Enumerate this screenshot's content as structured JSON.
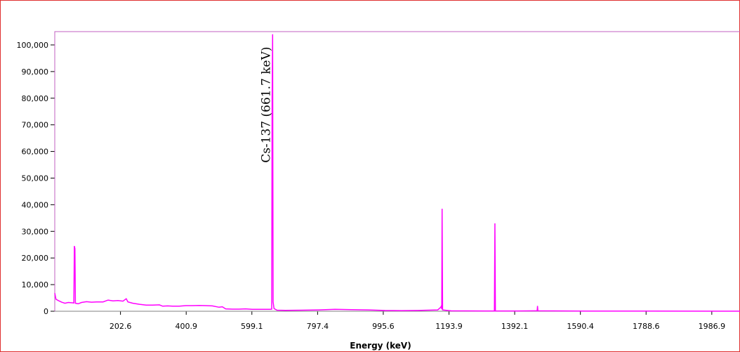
{
  "chart_data": {
    "type": "line",
    "xlabel": "Energy (keV)",
    "ylabel": "",
    "xlim": [
      4.3,
      2072
    ],
    "ylim": [
      0,
      105000
    ],
    "x_ticks": [
      {
        "value": 202.6,
        "label": "202.6"
      },
      {
        "value": 400.9,
        "label": "400.9"
      },
      {
        "value": 599.1,
        "label": "599.1"
      },
      {
        "value": 797.4,
        "label": "797.4"
      },
      {
        "value": 995.6,
        "label": "995.6"
      },
      {
        "value": 1193.9,
        "label": "1193.9"
      },
      {
        "value": 1392.1,
        "label": "1392.1"
      },
      {
        "value": 1590.4,
        "label": "1590.4"
      },
      {
        "value": 1788.6,
        "label": "1788.6"
      },
      {
        "value": 1986.9,
        "label": "1986.9"
      }
    ],
    "y_ticks": [
      {
        "value": 0,
        "label": "0"
      },
      {
        "value": 10000,
        "label": "10,000"
      },
      {
        "value": 20000,
        "label": "20,000"
      },
      {
        "value": 30000,
        "label": "30,000"
      },
      {
        "value": 40000,
        "label": "40,000"
      },
      {
        "value": 50000,
        "label": "50,000"
      },
      {
        "value": 60000,
        "label": "60,000"
      },
      {
        "value": 70000,
        "label": "70,000"
      },
      {
        "value": 80000,
        "label": "80,000"
      },
      {
        "value": 90000,
        "label": "90,000"
      },
      {
        "value": 100000,
        "label": "100,000"
      }
    ],
    "series": [
      {
        "color": "#ff00ff",
        "points": [
          [
            4.3,
            6800
          ],
          [
            8,
            4500
          ],
          [
            15,
            4000
          ],
          [
            25,
            3400
          ],
          [
            35,
            3000
          ],
          [
            45,
            3300
          ],
          [
            55,
            3200
          ],
          [
            62,
            3100
          ],
          [
            63.5,
            24500
          ],
          [
            65,
            23500
          ],
          [
            66.5,
            3000
          ],
          [
            75,
            2800
          ],
          [
            85,
            3300
          ],
          [
            100,
            3600
          ],
          [
            115,
            3400
          ],
          [
            130,
            3500
          ],
          [
            150,
            3500
          ],
          [
            165,
            4200
          ],
          [
            180,
            3900
          ],
          [
            195,
            4000
          ],
          [
            210,
            3800
          ],
          [
            220,
            4700
          ],
          [
            225,
            3500
          ],
          [
            240,
            3000
          ],
          [
            260,
            2600
          ],
          [
            280,
            2300
          ],
          [
            300,
            2300
          ],
          [
            320,
            2400
          ],
          [
            330,
            1900
          ],
          [
            345,
            2000
          ],
          [
            360,
            1900
          ],
          [
            380,
            1900
          ],
          [
            400,
            2100
          ],
          [
            420,
            2100
          ],
          [
            440,
            2200
          ],
          [
            460,
            2100
          ],
          [
            480,
            2000
          ],
          [
            500,
            1500
          ],
          [
            510,
            1700
          ],
          [
            520,
            900
          ],
          [
            540,
            800
          ],
          [
            560,
            800
          ],
          [
            580,
            900
          ],
          [
            600,
            700
          ],
          [
            620,
            700
          ],
          [
            640,
            700
          ],
          [
            655,
            700
          ],
          [
            659,
            800
          ],
          [
            660.2,
            80000
          ],
          [
            661.7,
            104000
          ],
          [
            663.2,
            3500
          ],
          [
            666,
            1000
          ],
          [
            675,
            400
          ],
          [
            700,
            350
          ],
          [
            750,
            400
          ],
          [
            800,
            500
          ],
          [
            850,
            700
          ],
          [
            900,
            600
          ],
          [
            950,
            500
          ],
          [
            1000,
            300
          ],
          [
            1050,
            250
          ],
          [
            1100,
            300
          ],
          [
            1160,
            500
          ],
          [
            1169,
            1500
          ],
          [
            1171,
            2000
          ],
          [
            1172,
            800
          ],
          [
            1173.2,
            38500
          ],
          [
            1174.5,
            500
          ],
          [
            1200,
            150
          ],
          [
            1250,
            120
          ],
          [
            1300,
            100
          ],
          [
            1331,
            100
          ],
          [
            1332.5,
            33000
          ],
          [
            1334,
            100
          ],
          [
            1400,
            100
          ],
          [
            1460,
            150
          ],
          [
            1461,
            2000
          ],
          [
            1462,
            150
          ],
          [
            1600,
            60
          ],
          [
            1800,
            40
          ],
          [
            2000,
            30
          ],
          [
            2072,
            20
          ]
        ]
      }
    ],
    "annotations": [
      {
        "text": "Cs-137 (661.7 keV)",
        "x": 661.7,
        "y": 104000
      }
    ]
  }
}
